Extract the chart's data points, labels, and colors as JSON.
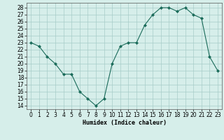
{
  "x": [
    0,
    1,
    2,
    3,
    4,
    5,
    6,
    7,
    8,
    9,
    10,
    11,
    12,
    13,
    14,
    15,
    16,
    17,
    18,
    19,
    20,
    21,
    22,
    23
  ],
  "y": [
    23,
    22.5,
    21,
    20,
    18.5,
    18.5,
    16,
    15,
    14,
    15,
    20,
    22.5,
    23,
    23,
    25.5,
    27,
    28,
    28,
    27.5,
    28,
    27,
    26.5,
    21,
    19
  ],
  "line_color": "#1a6b5a",
  "marker": "D",
  "marker_size": 2,
  "bg_color": "#d6eeea",
  "grid_color": "#a8ccc8",
  "xlabel": "Humidex (Indice chaleur)",
  "xlim": [
    -0.5,
    23.5
  ],
  "ylim": [
    13.5,
    28.7
  ],
  "yticks": [
    14,
    15,
    16,
    17,
    18,
    19,
    20,
    21,
    22,
    23,
    24,
    25,
    26,
    27,
    28
  ],
  "xticks": [
    0,
    1,
    2,
    3,
    4,
    5,
    6,
    7,
    8,
    9,
    10,
    11,
    12,
    13,
    14,
    15,
    16,
    17,
    18,
    19,
    20,
    21,
    22,
    23
  ],
  "xlabel_fontsize": 6.0,
  "tick_fontsize": 5.5
}
